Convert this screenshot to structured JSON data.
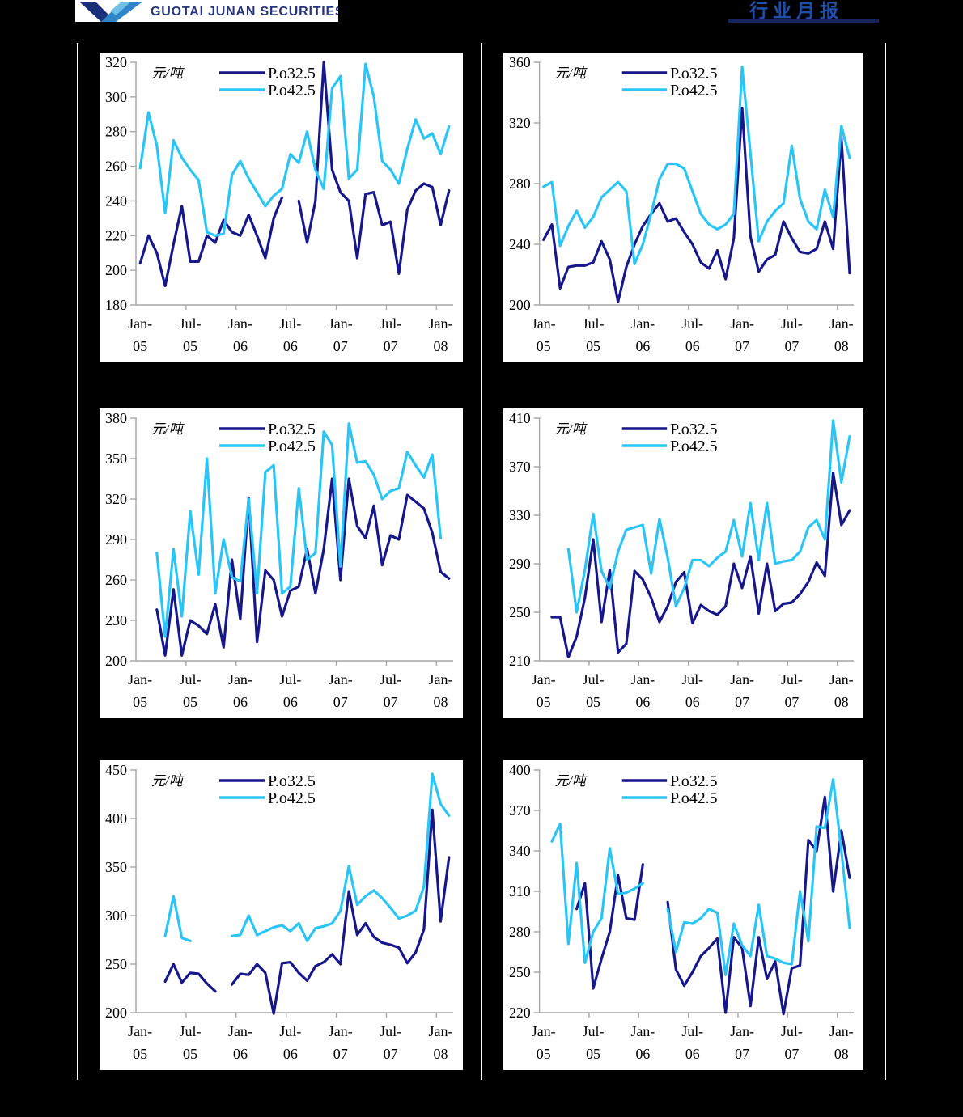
{
  "header": {
    "logo_text": "GUOTAI JUNAN SECURITIES",
    "report_label": "行业月报"
  },
  "colors": {
    "page_background": "#000000",
    "panel_background": "#ffffff",
    "axis": "#a6a6a6",
    "tick_text": "#000000",
    "series_po325": "#17178C",
    "series_po425": "#29C5F6",
    "logo_text": "#27357E",
    "logo_mark_dark": "#1C2F7D",
    "logo_mark_light": "#2E86C8",
    "report_label_color": "#1E4FA9",
    "header_rule": "#16255E"
  },
  "months": [
    "Jan-05",
    "Feb-05",
    "Mar-05",
    "Apr-05",
    "May-05",
    "Jun-05",
    "Jul-05",
    "Aug-05",
    "Sep-05",
    "Oct-05",
    "Nov-05",
    "Dec-05",
    "Jan-06",
    "Feb-06",
    "Mar-06",
    "Apr-06",
    "May-06",
    "Jun-06",
    "Jul-06",
    "Aug-06",
    "Sep-06",
    "Oct-06",
    "Nov-06",
    "Dec-06",
    "Jan-07",
    "Feb-07",
    "Mar-07",
    "Apr-07",
    "May-07",
    "Jun-07",
    "Jul-07",
    "Aug-07",
    "Sep-07",
    "Oct-07",
    "Nov-07",
    "Dec-07",
    "Jan-08",
    "Feb-08"
  ],
  "xtick_label_indices": [
    0,
    6,
    12,
    18,
    24,
    30,
    36
  ],
  "xtick_labels": [
    [
      "Jan-",
      "05"
    ],
    [
      "Jul-",
      "05"
    ],
    [
      "Jan-",
      "06"
    ],
    [
      "Jul-",
      "06"
    ],
    [
      "Jan-",
      "07"
    ],
    [
      "Jul-",
      "07"
    ],
    [
      "Jan-",
      "08"
    ]
  ],
  "chart_data": [
    {
      "type": "line",
      "position": "top-left",
      "title": "",
      "unit_label": "元/吨",
      "ylabel": "元/吨",
      "xlabel": "",
      "ylim": [
        180,
        320
      ],
      "yticks": [
        180,
        200,
        220,
        240,
        260,
        280,
        300,
        320
      ],
      "legend_position": "top-center",
      "grid": false,
      "series": [
        {
          "name": "P.o32.5",
          "color": "#17178C",
          "values": [
            204,
            220,
            210,
            191,
            215,
            237,
            205,
            205,
            220,
            216,
            229,
            222,
            220,
            232,
            220,
            207,
            230,
            242,
            null,
            240,
            216,
            240,
            320,
            258,
            245,
            240,
            207,
            244,
            245,
            226,
            228,
            198,
            235,
            246,
            250,
            248,
            226,
            246
          ]
        },
        {
          "name": "P.o42.5",
          "color": "#29C5F6",
          "values": [
            259,
            291,
            272,
            233,
            275,
            265,
            258,
            252,
            222,
            220,
            221,
            255,
            263,
            253,
            245,
            237,
            243,
            247,
            267,
            262,
            280,
            258,
            247,
            305,
            312,
            253,
            258,
            319,
            300,
            263,
            258,
            250,
            270,
            287,
            276,
            279,
            267,
            283
          ]
        }
      ]
    },
    {
      "type": "line",
      "position": "top-right",
      "title": "",
      "unit_label": "元/吨",
      "ylabel": "元/吨",
      "xlabel": "",
      "ylim": [
        200,
        360
      ],
      "yticks": [
        200,
        240,
        280,
        320,
        360
      ],
      "legend_position": "top-center",
      "grid": false,
      "series": [
        {
          "name": "P.o32.5",
          "color": "#17178C",
          "values": [
            243,
            253,
            211,
            225,
            226,
            226,
            228,
            242,
            230,
            202,
            225,
            240,
            252,
            260,
            267,
            255,
            257,
            248,
            240,
            228,
            224,
            236,
            217,
            244,
            330,
            245,
            222,
            230,
            233,
            255,
            244,
            235,
            234,
            237,
            255,
            237,
            310,
            221
          ]
        },
        {
          "name": "P.o42.5",
          "color": "#29C5F6",
          "values": [
            278,
            281,
            239,
            252,
            262,
            251,
            258,
            271,
            276,
            281,
            275,
            227,
            240,
            260,
            283,
            293,
            293,
            290,
            275,
            260,
            253,
            250,
            253,
            260,
            357,
            300,
            242,
            255,
            262,
            267,
            305,
            270,
            255,
            250,
            276,
            258,
            318,
            297
          ]
        }
      ]
    },
    {
      "type": "line",
      "position": "middle-left",
      "title": "",
      "unit_label": "元/吨",
      "ylabel": "元/吨",
      "xlabel": "",
      "ylim": [
        200,
        380
      ],
      "yticks": [
        200,
        230,
        260,
        290,
        320,
        350,
        380
      ],
      "legend_position": "top-center",
      "grid": false,
      "series": [
        {
          "name": "P.o32.5",
          "color": "#17178C",
          "values": [
            null,
            null,
            238,
            204,
            253,
            204,
            230,
            226,
            220,
            242,
            210,
            275,
            231,
            321,
            214,
            267,
            260,
            233,
            252,
            255,
            283,
            250,
            283,
            335,
            260,
            335,
            300,
            291,
            315,
            271,
            293,
            290,
            323,
            318,
            313,
            295,
            266,
            261
          ]
        },
        {
          "name": "P.o42.5",
          "color": "#29C5F6",
          "values": [
            null,
            null,
            280,
            218,
            283,
            233,
            311,
            264,
            350,
            250,
            290,
            262,
            259,
            320,
            250,
            340,
            345,
            250,
            255,
            328,
            275,
            280,
            370,
            360,
            270,
            376,
            347,
            348,
            338,
            320,
            326,
            328,
            355,
            345,
            336,
            353,
            291,
            null
          ]
        }
      ]
    },
    {
      "type": "line",
      "position": "middle-right",
      "title": "",
      "unit_label": "元/吨",
      "ylabel": "元/吨",
      "xlabel": "",
      "ylim": [
        210,
        410
      ],
      "yticks": [
        210,
        250,
        290,
        330,
        370,
        410
      ],
      "legend_position": "top-center",
      "grid": false,
      "series": [
        {
          "name": "P.o32.5",
          "color": "#17178C",
          "values": [
            null,
            246,
            246,
            213,
            230,
            262,
            310,
            242,
            285,
            217,
            224,
            284,
            277,
            262,
            242,
            255,
            275,
            283,
            241,
            256,
            251,
            248,
            255,
            290,
            270,
            296,
            249,
            290,
            251,
            257,
            258,
            265,
            275,
            291,
            280,
            365,
            322,
            334
          ]
        },
        {
          "name": "P.o42.5",
          "color": "#29C5F6",
          "values": [
            null,
            null,
            null,
            302,
            250,
            285,
            331,
            284,
            270,
            300,
            318,
            320,
            322,
            282,
            327,
            295,
            255,
            270,
            293,
            293,
            288,
            295,
            300,
            326,
            296,
            340,
            293,
            340,
            290,
            292,
            293,
            300,
            320,
            326,
            310,
            408,
            357,
            395
          ]
        }
      ]
    },
    {
      "type": "line",
      "position": "bottom-left",
      "title": "",
      "unit_label": "元/吨",
      "ylabel": "元/吨",
      "xlabel": "",
      "ylim": [
        200,
        450
      ],
      "yticks": [
        200,
        250,
        300,
        350,
        400,
        450
      ],
      "legend_position": "top-center",
      "grid": false,
      "series": [
        {
          "name": "P.o32.5",
          "color": "#17178C",
          "values": [
            null,
            null,
            null,
            232,
            250,
            231,
            241,
            240,
            230,
            222,
            null,
            229,
            240,
            239,
            250,
            241,
            199,
            251,
            252,
            241,
            233,
            248,
            252,
            260,
            250,
            325,
            280,
            292,
            278,
            272,
            270,
            267,
            251,
            262,
            286,
            409,
            294,
            360
          ]
        },
        {
          "name": "P.o42.5",
          "color": "#29C5F6",
          "values": [
            null,
            null,
            null,
            279,
            320,
            277,
            274,
            null,
            null,
            null,
            null,
            279,
            280,
            300,
            280,
            284,
            288,
            290,
            284,
            292,
            274,
            287,
            289,
            292,
            305,
            351,
            311,
            320,
            326,
            318,
            308,
            297,
            300,
            305,
            330,
            446,
            415,
            403
          ]
        }
      ]
    },
    {
      "type": "line",
      "position": "bottom-right",
      "title": "",
      "unit_label": "元/吨",
      "ylabel": "元/吨",
      "xlabel": "",
      "ylim": [
        220,
        400
      ],
      "yticks": [
        220,
        250,
        280,
        310,
        340,
        370,
        400
      ],
      "legend_position": "top-center",
      "grid": false,
      "series": [
        {
          "name": "P.o32.5",
          "color": "#17178C",
          "values": [
            null,
            null,
            null,
            null,
            297,
            316,
            238,
            260,
            280,
            322,
            290,
            289,
            330,
            null,
            null,
            302,
            252,
            240,
            250,
            262,
            268,
            275,
            220,
            276,
            268,
            225,
            276,
            245,
            258,
            219,
            253,
            255,
            348,
            340,
            380,
            310,
            355,
            320
          ]
        },
        {
          "name": "P.o42.5",
          "color": "#29C5F6",
          "values": [
            null,
            347,
            360,
            271,
            331,
            257,
            280,
            290,
            342,
            308,
            309,
            312,
            316,
            null,
            null,
            297,
            265,
            287,
            286,
            290,
            297,
            294,
            248,
            286,
            270,
            262,
            300,
            262,
            260,
            257,
            256,
            310,
            273,
            358,
            357,
            393,
            340,
            283
          ]
        }
      ]
    }
  ]
}
